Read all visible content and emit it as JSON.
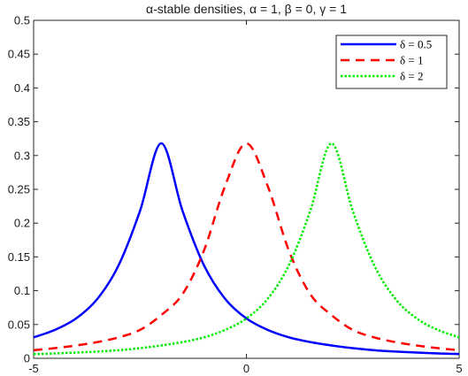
{
  "chart_data": {
    "type": "line",
    "title": "α-stable densities, α = 1, β = 0, γ = 1",
    "xlabel": "",
    "ylabel": "",
    "xlim": [
      -5,
      5
    ],
    "ylim": [
      0,
      0.5
    ],
    "x_ticks": [
      "-5",
      "0",
      "5"
    ],
    "y_ticks": [
      "0",
      "0.05",
      "0.1",
      "0.15",
      "0.2",
      "0.25",
      "0.3",
      "0.35",
      "0.4",
      "0.45",
      "0.5"
    ],
    "grid": false,
    "legend_position": "top-right",
    "x": [
      -5,
      -4.5,
      -4,
      -3.5,
      -3,
      -2.5,
      -2,
      -1.5,
      -1,
      -0.5,
      0,
      0.5,
      1,
      1.5,
      2,
      2.5,
      3,
      3.5,
      4,
      4.5,
      5
    ],
    "series": [
      {
        "name": "δ = 0.5",
        "color": "#0000ff",
        "style": "solid",
        "values": [
          0.031,
          0.042,
          0.059,
          0.088,
          0.138,
          0.218,
          0.318,
          0.218,
          0.138,
          0.088,
          0.059,
          0.042,
          0.031,
          0.024,
          0.019,
          0.015,
          0.012,
          0.01,
          0.0085,
          0.0072,
          0.0063
        ]
      },
      {
        "name": "δ = 1",
        "color": "#ff0000",
        "style": "dashed",
        "values": [
          0.012,
          0.015,
          0.019,
          0.024,
          0.031,
          0.042,
          0.064,
          0.095,
          0.159,
          0.255,
          0.318,
          0.255,
          0.159,
          0.095,
          0.064,
          0.042,
          0.031,
          0.024,
          0.019,
          0.015,
          0.012
        ]
      },
      {
        "name": "δ = 2",
        "color": "#00ee00",
        "style": "dotted",
        "values": [
          0.0063,
          0.0072,
          0.0085,
          0.01,
          0.012,
          0.015,
          0.019,
          0.024,
          0.031,
          0.042,
          0.059,
          0.088,
          0.138,
          0.218,
          0.318,
          0.218,
          0.138,
          0.088,
          0.059,
          0.042,
          0.031
        ]
      }
    ]
  }
}
